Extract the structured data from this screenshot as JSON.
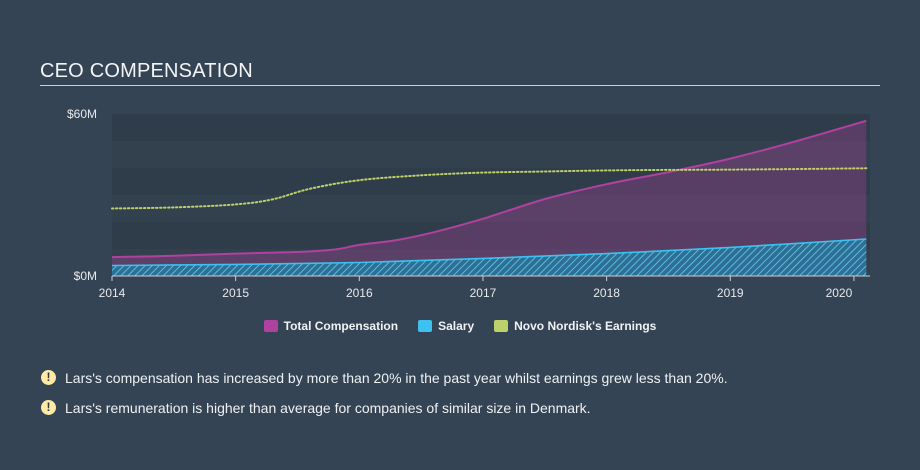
{
  "header": {
    "title": "CEO COMPENSATION"
  },
  "colors": {
    "background": "#354454",
    "total_compensation": "#b0419f",
    "salary": "#3dc1f0",
    "earnings": "#bcd06b"
  },
  "chart_data": {
    "type": "area",
    "ylim": [
      0,
      60
    ],
    "xlim": [
      2014,
      2020.13
    ],
    "y_ticks": [
      {
        "value": 60,
        "label": "$60M"
      },
      {
        "value": 0,
        "label": "$0M"
      }
    ],
    "x_ticks": [
      "2014",
      "2015",
      "2016",
      "2017",
      "2018",
      "2019",
      "2020"
    ],
    "series": [
      {
        "name": "Total Compensation",
        "x": [
          2014,
          2014.5,
          2015,
          2015.5,
          2015.8,
          2016,
          2016.3,
          2016.6,
          2017,
          2017.5,
          2018,
          2018.5,
          2019,
          2019.5,
          2020.1
        ],
        "values": [
          7,
          7.5,
          8.3,
          8.9,
          9.8,
          11.5,
          13.3,
          16.2,
          21.2,
          28.5,
          34,
          38.5,
          43.5,
          49.5,
          57.5
        ]
      },
      {
        "name": "Salary",
        "x": [
          2014,
          2015,
          2016,
          2017,
          2018,
          2019,
          2020.1
        ],
        "values": [
          3.9,
          4.3,
          5,
          6.5,
          8.3,
          10.6,
          13.7
        ]
      },
      {
        "name": "Novo Nordisk's Earnings",
        "x": [
          2014,
          2014.5,
          2015,
          2015.3,
          2015.6,
          2016,
          2016.5,
          2017,
          2017.5,
          2018,
          2018.5,
          2019,
          2019.5,
          2020.1
        ],
        "values": [
          25,
          25.4,
          26.5,
          28.4,
          32.3,
          35.5,
          37.3,
          38.3,
          38.7,
          39.1,
          39.3,
          39.4,
          39.6,
          39.9
        ]
      }
    ]
  },
  "legend": {
    "items": [
      {
        "label": "Total Compensation",
        "color": "#b0419f"
      },
      {
        "label": "Salary",
        "color": "#3dc1f0"
      },
      {
        "label": "Novo Nordisk's Earnings",
        "color": "#bcd06b"
      }
    ]
  },
  "notes": [
    {
      "icon": "warning-icon",
      "text": "Lars's compensation has increased by more than 20% in the past year whilst earnings grew less than 20%."
    },
    {
      "icon": "warning-icon",
      "text": "Lars's remuneration is higher than average for companies of similar size in Denmark."
    }
  ]
}
